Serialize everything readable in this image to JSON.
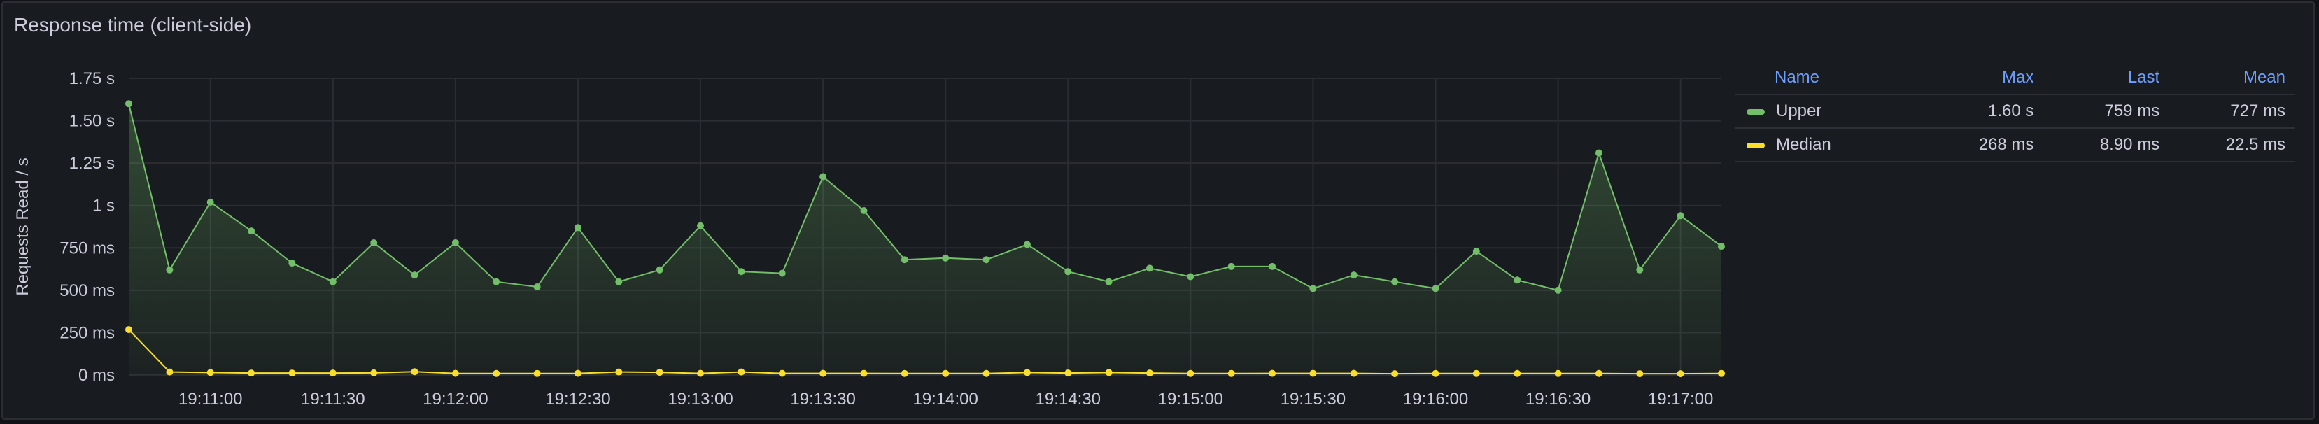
{
  "panel": {
    "title": "Response time (client-side)"
  },
  "legend": {
    "headers": {
      "name": "Name",
      "max": "Max",
      "last": "Last",
      "mean": "Mean"
    },
    "rows": [
      {
        "name": "Upper",
        "max": "1.60 s",
        "last": "759 ms",
        "mean": "727 ms",
        "color": "#73bf69"
      },
      {
        "name": "Median",
        "max": "268 ms",
        "last": "8.90 ms",
        "mean": "22.5 ms",
        "color": "#fade2a"
      }
    ]
  },
  "chart_data": {
    "type": "line",
    "title": "Response time (client-side)",
    "ylabel": "Requests Read / s",
    "ylim": [
      0,
      1.75
    ],
    "y_unit": "s",
    "y_ticks": [
      {
        "value": 1.75,
        "label": "1.75 s"
      },
      {
        "value": 1.5,
        "label": "1.50 s"
      },
      {
        "value": 1.25,
        "label": "1.25 s"
      },
      {
        "value": 1.0,
        "label": "1 s"
      },
      {
        "value": 0.75,
        "label": "750 ms"
      },
      {
        "value": 0.5,
        "label": "500 ms"
      },
      {
        "value": 0.25,
        "label": "250 ms"
      },
      {
        "value": 0.0,
        "label": "0 ms"
      }
    ],
    "xlim": [
      "19:10:40",
      "19:17:10"
    ],
    "x_ticks": [
      "19:11:00",
      "19:11:30",
      "19:12:00",
      "19:12:30",
      "19:13:00",
      "19:13:30",
      "19:14:00",
      "19:14:30",
      "19:15:00",
      "19:15:30",
      "19:16:00",
      "19:16:30",
      "19:17:00"
    ],
    "grid": true,
    "legend_position": "right",
    "x": [
      "19:10:40",
      "19:10:50",
      "19:11:00",
      "19:11:10",
      "19:11:20",
      "19:11:30",
      "19:11:40",
      "19:11:50",
      "19:12:00",
      "19:12:10",
      "19:12:20",
      "19:12:30",
      "19:12:40",
      "19:12:50",
      "19:13:00",
      "19:13:10",
      "19:13:20",
      "19:13:30",
      "19:13:40",
      "19:13:50",
      "19:14:00",
      "19:14:10",
      "19:14:20",
      "19:14:30",
      "19:14:40",
      "19:14:50",
      "19:15:00",
      "19:15:10",
      "19:15:20",
      "19:15:30",
      "19:15:40",
      "19:15:50",
      "19:16:00",
      "19:16:10",
      "19:16:20",
      "19:16:30",
      "19:16:40",
      "19:16:50",
      "19:17:00",
      "19:17:10"
    ],
    "series": [
      {
        "name": "Upper",
        "color": "#73bf69",
        "values": [
          1.6,
          0.62,
          1.02,
          0.85,
          0.66,
          0.55,
          0.78,
          0.59,
          0.78,
          0.55,
          0.52,
          0.87,
          0.55,
          0.62,
          0.88,
          0.61,
          0.6,
          1.17,
          0.97,
          0.68,
          0.69,
          0.68,
          0.77,
          0.61,
          0.55,
          0.63,
          0.58,
          0.64,
          0.64,
          0.51,
          0.59,
          0.55,
          0.51,
          0.73,
          0.56,
          0.5,
          1.31,
          0.62,
          0.94,
          0.759
        ]
      },
      {
        "name": "Median",
        "color": "#fade2a",
        "values": [
          0.268,
          0.018,
          0.015,
          0.012,
          0.012,
          0.012,
          0.013,
          0.02,
          0.01,
          0.009,
          0.009,
          0.01,
          0.018,
          0.016,
          0.01,
          0.018,
          0.01,
          0.01,
          0.01,
          0.009,
          0.009,
          0.009,
          0.015,
          0.012,
          0.015,
          0.012,
          0.009,
          0.009,
          0.01,
          0.01,
          0.01,
          0.008,
          0.009,
          0.009,
          0.009,
          0.009,
          0.009,
          0.008,
          0.008,
          0.0089
        ]
      }
    ]
  }
}
